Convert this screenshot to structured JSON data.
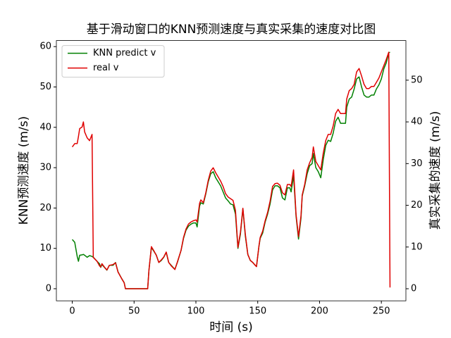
{
  "chart_data": {
    "type": "line",
    "title": "基于滑动窗口的KNN预测速度与真实采集的速度对比图",
    "x_label": "时间 (s)",
    "y_label": "KNN预测速度 (m/s)",
    "y2_label": "真实采集的速度 (m/s)",
    "xlim": [
      -12.85,
      269.85
    ],
    "ylim": [
      -3.0,
      61.5
    ],
    "y2lim": [
      -2.9,
      59.5
    ],
    "xticks": [
      0,
      50,
      100,
      150,
      200,
      250
    ],
    "yticks": [
      0,
      10,
      20,
      30,
      40,
      50,
      60
    ],
    "y2ticks": [
      0,
      10,
      20,
      30,
      40,
      50
    ],
    "legend": "upper left",
    "x": [
      0,
      2,
      4,
      5,
      6,
      8,
      9,
      10,
      12,
      14,
      16,
      17,
      20,
      22,
      23,
      24,
      26,
      28,
      30,
      33,
      35,
      37,
      40,
      42,
      43,
      61,
      62,
      64,
      66,
      68,
      70,
      72,
      74,
      76,
      78,
      80,
      83,
      85,
      88,
      90,
      92,
      94,
      96,
      98,
      100,
      101,
      103,
      104,
      106,
      108,
      110,
      112,
      114,
      116,
      118,
      120,
      122,
      124,
      126,
      128,
      130,
      132,
      134,
      136,
      138,
      140,
      142,
      144,
      146,
      148,
      149,
      151,
      152,
      154,
      156,
      158,
      160,
      162,
      164,
      166,
      168,
      170,
      172,
      174,
      176,
      177,
      179,
      181,
      183,
      185,
      186,
      188,
      190,
      192,
      194,
      195,
      197,
      199,
      201,
      203,
      205,
      207,
      209,
      211,
      213,
      215,
      217,
      219,
      221,
      222,
      224,
      226,
      228,
      230,
      232,
      234,
      236,
      238,
      240,
      242,
      244,
      246,
      248,
      250,
      252,
      254,
      256,
      257
    ],
    "series": [
      {
        "name": "KNN predict v",
        "color": "#008000",
        "values": [
          12.2,
          11.5,
          8.0,
          6.8,
          8.3,
          8.4,
          8.5,
          8.3,
          7.8,
          8.2,
          8.0,
          7.8,
          6.8,
          6.2,
          5.3,
          6.0,
          5.3,
          4.6,
          5.8,
          5.8,
          6.5,
          4.2,
          2.5,
          1.5,
          0,
          0,
          4.5,
          10.2,
          9.3,
          8.3,
          6.5,
          7.0,
          7.8,
          9.0,
          6.5,
          5.8,
          4.8,
          6.5,
          9.5,
          12.5,
          14.5,
          15.5,
          16.0,
          16.3,
          16.3,
          15.3,
          20.5,
          21.3,
          21.0,
          23.5,
          26.5,
          28.5,
          29.0,
          27.5,
          26.5,
          25.5,
          24.0,
          22.5,
          21.8,
          21.0,
          20.8,
          18.5,
          10.0,
          13.5,
          19.8,
          13.0,
          8.5,
          7.0,
          6.5,
          5.8,
          5.5,
          10.5,
          12.5,
          13.8,
          16.5,
          18.5,
          21.0,
          24.5,
          25.5,
          25.5,
          25.0,
          22.5,
          22.0,
          25.0,
          25.0,
          24.0,
          28.0,
          18.0,
          12.3,
          17.5,
          23.0,
          25.5,
          28.5,
          30.5,
          31.0,
          33.5,
          30.0,
          29.0,
          27.5,
          32.0,
          35.5,
          36.8,
          36.5,
          38.5,
          41.5,
          42.5,
          41.0,
          41.0,
          41.0,
          45.0,
          47.0,
          47.5,
          49.5,
          52.0,
          52.5,
          50.0,
          48.0,
          47.5,
          47.5,
          48.0,
          48.0,
          49.5,
          50.5,
          52.0,
          54.5,
          56.0,
          58.5,
          58.6
        ]
      },
      {
        "name": "real v",
        "color": "#e00000",
        "axis": "y2",
        "values": [
          34.0,
          34.8,
          34.8,
          36.5,
          38.4,
          38.8,
          40.0,
          37.6,
          36.2,
          35.5,
          37.0,
          7.5,
          6.6,
          5.5,
          5.2,
          6.0,
          5.2,
          4.5,
          5.6,
          5.8,
          6.2,
          4.0,
          2.4,
          1.4,
          0,
          0,
          4.4,
          10.1,
          9.1,
          8.0,
          6.3,
          6.9,
          7.6,
          8.8,
          6.3,
          5.5,
          4.6,
          6.4,
          9.2,
          12.3,
          14.3,
          15.5,
          16.0,
          16.3,
          16.5,
          16.0,
          20.5,
          21.3,
          20.6,
          23.0,
          26.0,
          28.2,
          29.0,
          27.8,
          26.8,
          25.8,
          24.5,
          22.8,
          22.0,
          21.6,
          21.2,
          18.8,
          9.9,
          13.5,
          19.3,
          13.0,
          8.2,
          6.8,
          6.3,
          5.6,
          5.3,
          10.3,
          12.3,
          13.8,
          16.3,
          18.3,
          21.0,
          24.5,
          25.2,
          25.3,
          24.8,
          23.0,
          22.5,
          25.0,
          25.0,
          24.5,
          28.5,
          17.8,
          12.5,
          17.5,
          22.5,
          25.0,
          28.5,
          30.2,
          31.5,
          34.0,
          30.5,
          29.5,
          28.5,
          32.5,
          35.5,
          37.0,
          37.0,
          39.0,
          42.0,
          43.0,
          42.0,
          42.0,
          42.0,
          45.5,
          47.5,
          48.0,
          49.0,
          52.0,
          52.8,
          51.0,
          49.0,
          48.0,
          48.0,
          48.5,
          48.5,
          49.5,
          50.5,
          52.0,
          53.5,
          55.0,
          56.7,
          0.3
        ]
      }
    ]
  }
}
